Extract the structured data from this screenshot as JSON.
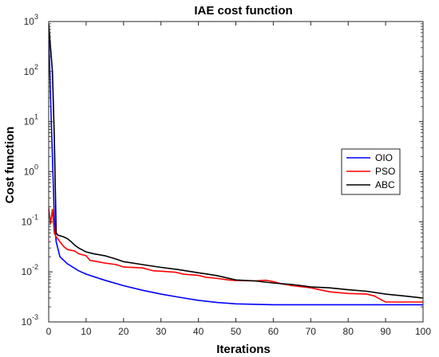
{
  "chart_data": {
    "type": "line",
    "title": "IAE cost function",
    "xlabel": "Iterations",
    "ylabel": "Cost function",
    "xlim": [
      0,
      100
    ],
    "ylim": [
      0.001,
      1000
    ],
    "yscale": "log",
    "grid": false,
    "legend_position": "right",
    "x_ticks": [
      "0",
      "10",
      "20",
      "30",
      "40",
      "50",
      "60",
      "70",
      "80",
      "90",
      "100"
    ],
    "y_ticks": [
      {
        "base": "10",
        "exp": "-3",
        "value": 0.001
      },
      {
        "base": "10",
        "exp": "-2",
        "value": 0.01
      },
      {
        "base": "10",
        "exp": "-1",
        "value": 0.1
      },
      {
        "base": "10",
        "exp": "0",
        "value": 1
      },
      {
        "base": "10",
        "exp": "1",
        "value": 10
      },
      {
        "base": "10",
        "exp": "2",
        "value": 100
      },
      {
        "base": "10",
        "exp": "3",
        "value": 1000
      }
    ],
    "series": [
      {
        "name": "OIO",
        "color": "#0000ff",
        "points": [
          [
            0,
            600
          ],
          [
            0.5,
            30
          ],
          [
            1,
            2
          ],
          [
            1.5,
            0.12
          ],
          [
            2,
            0.04
          ],
          [
            3,
            0.02
          ],
          [
            5,
            0.0145
          ],
          [
            8,
            0.0105
          ],
          [
            10,
            0.009
          ],
          [
            15,
            0.0068
          ],
          [
            20,
            0.0053
          ],
          [
            25,
            0.0043
          ],
          [
            30,
            0.0036
          ],
          [
            35,
            0.0031
          ],
          [
            40,
            0.0027
          ],
          [
            45,
            0.00245
          ],
          [
            50,
            0.0023
          ],
          [
            60,
            0.0022
          ],
          [
            70,
            0.0022
          ],
          [
            80,
            0.0022
          ],
          [
            90,
            0.0022
          ],
          [
            100,
            0.0022
          ]
        ]
      },
      {
        "name": "PSO",
        "color": "#ff0000",
        "points": [
          [
            0,
            0.19
          ],
          [
            0.5,
            0.09
          ],
          [
            1,
            0.18
          ],
          [
            1.5,
            0.06
          ],
          [
            2,
            0.05
          ],
          [
            3,
            0.04
          ],
          [
            4,
            0.032
          ],
          [
            5,
            0.028
          ],
          [
            7,
            0.026
          ],
          [
            8,
            0.023
          ],
          [
            10,
            0.021
          ],
          [
            11,
            0.017
          ],
          [
            13,
            0.016
          ],
          [
            15,
            0.015
          ],
          [
            18,
            0.014
          ],
          [
            20,
            0.0125
          ],
          [
            25,
            0.012
          ],
          [
            28,
            0.0105
          ],
          [
            30,
            0.0103
          ],
          [
            34,
            0.0098
          ],
          [
            36,
            0.009
          ],
          [
            40,
            0.0085
          ],
          [
            42,
            0.0078
          ],
          [
            45,
            0.0074
          ],
          [
            48,
            0.0069
          ],
          [
            50,
            0.0067
          ],
          [
            55,
            0.0066
          ],
          [
            58,
            0.0068
          ],
          [
            60,
            0.0064
          ],
          [
            62,
            0.0058
          ],
          [
            65,
            0.0053
          ],
          [
            70,
            0.0048
          ],
          [
            73,
            0.0043
          ],
          [
            75,
            0.004
          ],
          [
            80,
            0.0037
          ],
          [
            85,
            0.0036
          ],
          [
            87,
            0.0033
          ],
          [
            88,
            0.003
          ],
          [
            90,
            0.0025
          ],
          [
            100,
            0.0025
          ]
        ]
      },
      {
        "name": "ABC",
        "color": "#000000",
        "points": [
          [
            0,
            900
          ],
          [
            1,
            100
          ],
          [
            1.5,
            5
          ],
          [
            2,
            0.06
          ],
          [
            2.5,
            0.054
          ],
          [
            4,
            0.05
          ],
          [
            5,
            0.046
          ],
          [
            6,
            0.04
          ],
          [
            7,
            0.034
          ],
          [
            8,
            0.03
          ],
          [
            10,
            0.025
          ],
          [
            12,
            0.023
          ],
          [
            15,
            0.021
          ],
          [
            18,
            0.018
          ],
          [
            20,
            0.016
          ],
          [
            25,
            0.014
          ],
          [
            30,
            0.0123
          ],
          [
            35,
            0.011
          ],
          [
            40,
            0.0096
          ],
          [
            45,
            0.0084
          ],
          [
            50,
            0.0069
          ],
          [
            55,
            0.0066
          ],
          [
            60,
            0.006
          ],
          [
            65,
            0.0056
          ],
          [
            70,
            0.005
          ],
          [
            75,
            0.0048
          ],
          [
            80,
            0.0044
          ],
          [
            85,
            0.0041
          ],
          [
            90,
            0.0036
          ],
          [
            95,
            0.0033
          ],
          [
            100,
            0.003
          ]
        ]
      }
    ]
  }
}
